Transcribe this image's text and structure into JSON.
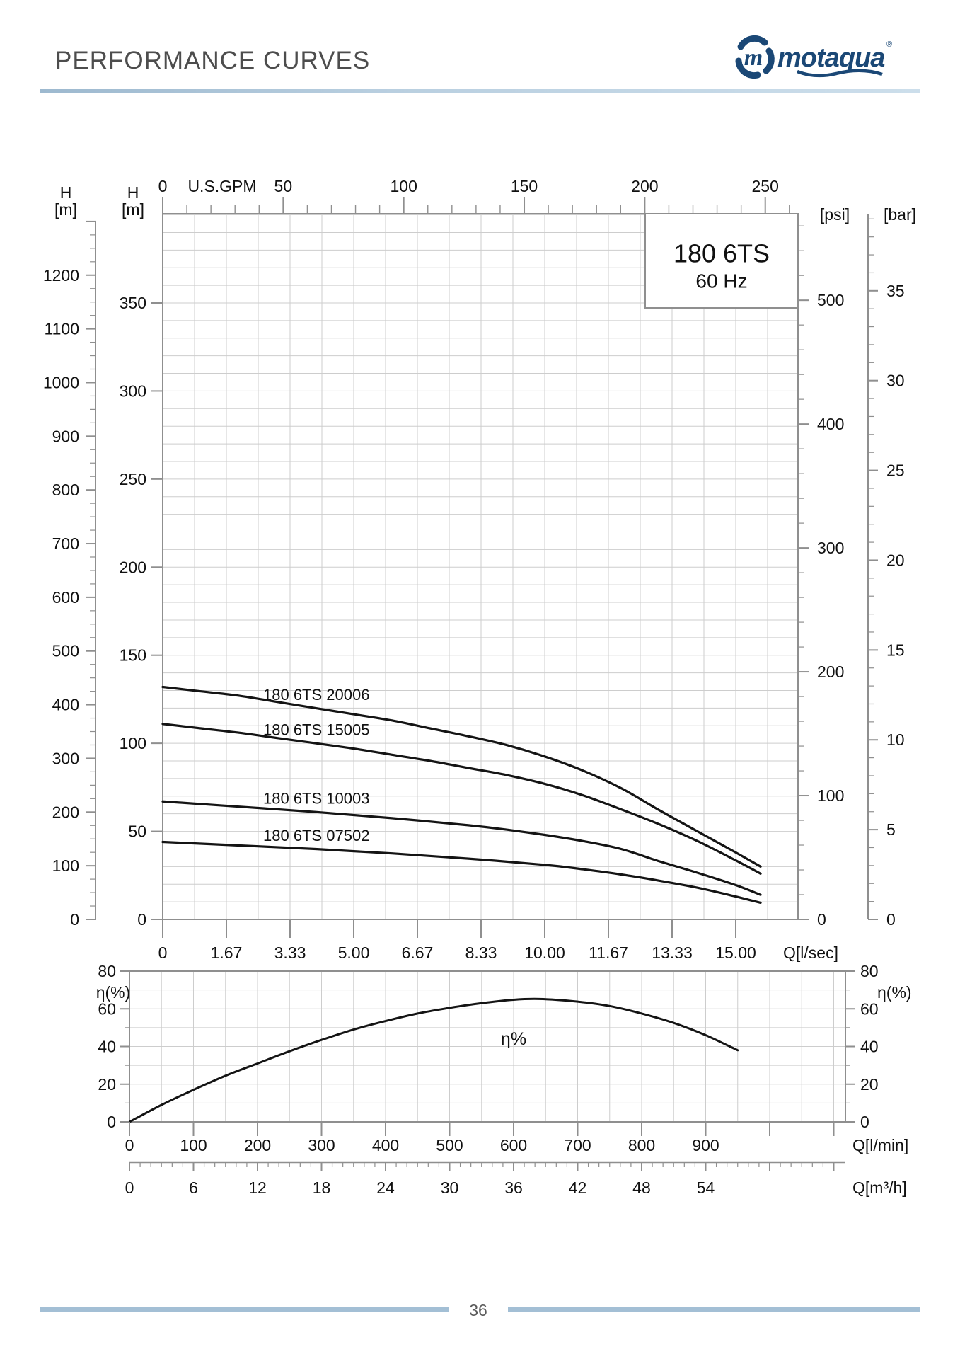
{
  "header": {
    "title": "PERFORMANCE CURVES",
    "logo": {
      "text": "motaqua",
      "emblem_letter": "m",
      "registered": "®",
      "brand_color": "#1b4876"
    }
  },
  "footer": {
    "page_number": "36"
  },
  "colors": {
    "title_gray": "#4d4d4d",
    "rule_blue": "#aec9dd",
    "curve_black": "#141414",
    "grid_gray": "#cdcdcd",
    "axis_gray": "#8f8f8f",
    "label_black": "#111111",
    "brand_navy": "#1b4876"
  },
  "chart_data": [
    {
      "type": "line",
      "name": "head-capacity-chart",
      "model_box": {
        "line1": "180 6TS",
        "line2": "60 Hz"
      },
      "x_axes": {
        "top_gpm": {
          "header": "U.S.GPM",
          "tick_labels": [
            0,
            50,
            100,
            150,
            200,
            250
          ],
          "minor_step": 10,
          "max": 260
        },
        "bottom_lsec": {
          "label": "Q[l/sec]",
          "tick_labels": [
            "0",
            "1.67",
            "3.33",
            "5.00",
            "6.67",
            "8.33",
            "10.00",
            "11.67",
            "13.33",
            "15.00"
          ],
          "tick_values": [
            0,
            1.6667,
            3.3333,
            5.0,
            6.6667,
            8.3333,
            10.0,
            11.6667,
            13.3333,
            15.0
          ],
          "grid_step": 0.83333,
          "max": 16.6
        }
      },
      "y_axes": {
        "outer_left": {
          "header_line1": "H",
          "header_line2": "[m]",
          "tick_labels": [
            0,
            100,
            200,
            300,
            400,
            500,
            600,
            700,
            800,
            900,
            1000,
            1100,
            1200
          ],
          "minor_step": 25,
          "max": 1300
        },
        "inner_left": {
          "header_line1": "H",
          "header_line2": "[m]",
          "tick_labels": [
            0,
            50,
            100,
            150,
            200,
            250,
            300,
            350
          ],
          "grid_step": 10,
          "max": 400
        },
        "psi": {
          "header": "[psi]",
          "tick_labels": [
            0,
            100,
            200,
            300,
            400,
            500
          ],
          "minor_step": 20,
          "max": 560
        },
        "bar": {
          "header": "[bar]",
          "tick_labels": [
            0,
            5,
            10,
            15,
            20,
            25,
            30,
            35
          ],
          "minor_step": 1,
          "max": 39
        }
      },
      "series": [
        {
          "name": "180 6TS 20006",
          "points": [
            [
              0,
              132
            ],
            [
              1,
              129.5
            ],
            [
              2,
              127
            ],
            [
              3,
              123.5
            ],
            [
              4,
              120
            ],
            [
              5,
              116.5
            ],
            [
              6,
              113
            ],
            [
              7,
              108.5
            ],
            [
              8,
              104
            ],
            [
              9,
              99
            ],
            [
              10,
              92.5
            ],
            [
              11,
              84.5
            ],
            [
              12,
              74.5
            ],
            [
              13,
              62
            ],
            [
              14,
              50
            ],
            [
              15,
              38
            ],
            [
              15.65,
              30
            ]
          ]
        },
        {
          "name": "180 6TS 15005",
          "points": [
            [
              0,
              111
            ],
            [
              1,
              108.5
            ],
            [
              2,
              106
            ],
            [
              3,
              103
            ],
            [
              4,
              100
            ],
            [
              5,
              97
            ],
            [
              6,
              93.5
            ],
            [
              7,
              90
            ],
            [
              8,
              86
            ],
            [
              9,
              82
            ],
            [
              10,
              77
            ],
            [
              11,
              70.5
            ],
            [
              12,
              62.5
            ],
            [
              13,
              54
            ],
            [
              14,
              44.5
            ],
            [
              15,
              33.5
            ],
            [
              15.65,
              26
            ]
          ]
        },
        {
          "name": "180 6TS 10003",
          "points": [
            [
              0,
              67
            ],
            [
              2,
              64
            ],
            [
              4,
              61
            ],
            [
              6,
              57.5
            ],
            [
              8,
              53.5
            ],
            [
              9,
              51
            ],
            [
              10,
              48
            ],
            [
              11,
              44.5
            ],
            [
              12,
              40
            ],
            [
              13,
              33
            ],
            [
              14,
              26.5
            ],
            [
              15,
              19.5
            ],
            [
              15.65,
              14
            ]
          ]
        },
        {
          "name": "180 6TS 07502",
          "points": [
            [
              0,
              44
            ],
            [
              2,
              42
            ],
            [
              4,
              40
            ],
            [
              6,
              37.5
            ],
            [
              8,
              34.5
            ],
            [
              10,
              31
            ],
            [
              11,
              28.5
            ],
            [
              12,
              25.5
            ],
            [
              13,
              22
            ],
            [
              14,
              18
            ],
            [
              15,
              13
            ],
            [
              15.65,
              9.5
            ]
          ]
        }
      ]
    },
    {
      "type": "line",
      "name": "efficiency-chart",
      "x_axes": {
        "lmin": {
          "label": "Q[l/min]",
          "tick_labels": [
            0,
            100,
            200,
            300,
            400,
            500,
            600,
            700,
            800,
            900
          ],
          "grid_step": 50,
          "max": 1118
        },
        "m3h": {
          "label": "Q[m³/h]",
          "tick_labels": [
            0,
            6,
            12,
            18,
            24,
            30,
            36,
            42,
            48,
            54
          ],
          "minor_step": 1,
          "max": 66
        }
      },
      "y_axis": {
        "header": "η(%)",
        "tick_labels": [
          0,
          20,
          40,
          60,
          80
        ],
        "minor_step": 10,
        "max": 80
      },
      "annotation": {
        "text": "η%",
        "at_lmin": 600,
        "at_eta": 44
      },
      "series": [
        {
          "name": "efficiency",
          "points": [
            [
              0,
              0
            ],
            [
              50,
              9
            ],
            [
              100,
              17
            ],
            [
              150,
              24.5
            ],
            [
              200,
              31
            ],
            [
              250,
              37.5
            ],
            [
              300,
              43.5
            ],
            [
              350,
              49
            ],
            [
              400,
              53.5
            ],
            [
              450,
              57.5
            ],
            [
              500,
              60.5
            ],
            [
              550,
              63
            ],
            [
              600,
              64.8
            ],
            [
              640,
              65.2
            ],
            [
              700,
              63.8
            ],
            [
              750,
              61.5
            ],
            [
              800,
              57.5
            ],
            [
              850,
              52.5
            ],
            [
              900,
              46
            ],
            [
              950,
              38
            ]
          ]
        }
      ]
    }
  ]
}
